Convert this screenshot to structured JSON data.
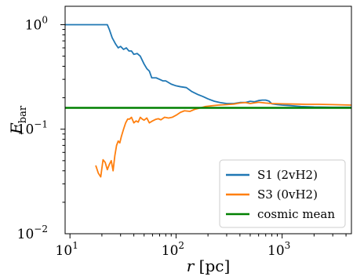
{
  "chart_data": {
    "type": "line",
    "title": "",
    "xlabel": "r [pc]",
    "ylabel": "F_bar",
    "xscale": "log",
    "yscale": "log",
    "xlim": [
      9,
      4500
    ],
    "ylim": [
      0.01,
      1.5
    ],
    "x_ticks": [
      {
        "value": 10,
        "label_base": "10",
        "label_exp": "1"
      },
      {
        "value": 100,
        "label_base": "10",
        "label_exp": "2"
      },
      {
        "value": 1000,
        "label_base": "10",
        "label_exp": "3"
      }
    ],
    "y_ticks": [
      {
        "value": 0.01,
        "label_base": "10",
        "label_exp": "−2"
      },
      {
        "value": 0.1,
        "label_base": "10",
        "label_exp": "−1"
      },
      {
        "value": 1,
        "label_base": "10",
        "label_exp": "0"
      }
    ],
    "legend_position": "lower-right",
    "series": [
      {
        "name": "S1 (2vH2)",
        "color": "#1f77b4",
        "x": [
          9,
          12,
          16,
          20,
          22.5,
          23.5,
          25,
          27,
          28.5,
          30,
          32,
          34,
          36,
          38,
          40,
          43,
          46,
          50,
          53,
          56,
          59,
          62,
          65,
          70,
          75,
          80,
          90,
          100,
          110,
          125,
          140,
          160,
          180,
          200,
          230,
          260,
          300,
          350,
          400,
          450,
          500,
          550,
          600,
          650,
          700,
          750,
          800,
          900,
          1000,
          1200,
          1500,
          2000,
          3000,
          4500
        ],
        "values": [
          1.0,
          1.0,
          1.0,
          1.0,
          1.0,
          0.9,
          0.75,
          0.65,
          0.6,
          0.62,
          0.58,
          0.6,
          0.56,
          0.56,
          0.52,
          0.53,
          0.5,
          0.42,
          0.38,
          0.36,
          0.31,
          0.31,
          0.31,
          0.3,
          0.29,
          0.29,
          0.27,
          0.26,
          0.255,
          0.25,
          0.23,
          0.215,
          0.205,
          0.195,
          0.185,
          0.18,
          0.176,
          0.176,
          0.18,
          0.18,
          0.185,
          0.183,
          0.188,
          0.19,
          0.19,
          0.186,
          0.175,
          0.172,
          0.17,
          0.168,
          0.165,
          0.163,
          0.162,
          0.162
        ]
      },
      {
        "name": "S3 (0vH2)",
        "color": "#ff7f0e",
        "x": [
          17.5,
          18.5,
          19.5,
          20.5,
          21.5,
          22.5,
          23.5,
          24.5,
          25.5,
          26.5,
          27.5,
          28.5,
          29.5,
          30.5,
          32,
          33.5,
          35,
          36.5,
          38,
          40,
          42,
          44,
          46,
          48,
          50,
          53,
          56,
          60,
          64,
          68,
          72,
          78,
          85,
          92,
          100,
          110,
          120,
          135,
          150,
          170,
          190,
          220,
          250,
          300,
          350,
          400,
          450,
          500,
          600,
          700,
          800,
          1000,
          1300,
          1700,
          2200,
          3000,
          4500
        ],
        "values": [
          0.045,
          0.038,
          0.035,
          0.051,
          0.048,
          0.041,
          0.046,
          0.05,
          0.04,
          0.056,
          0.07,
          0.077,
          0.074,
          0.085,
          0.1,
          0.115,
          0.125,
          0.125,
          0.13,
          0.115,
          0.12,
          0.117,
          0.13,
          0.125,
          0.122,
          0.128,
          0.115,
          0.12,
          0.124,
          0.126,
          0.123,
          0.13,
          0.128,
          0.13,
          0.136,
          0.145,
          0.15,
          0.148,
          0.155,
          0.16,
          0.165,
          0.168,
          0.17,
          0.172,
          0.174,
          0.178,
          0.18,
          0.176,
          0.181,
          0.178,
          0.176,
          0.175,
          0.174,
          0.173,
          0.173,
          0.172,
          0.17
        ]
      },
      {
        "name": "cosmic mean",
        "color": "#008000",
        "x": [
          9,
          4500
        ],
        "values": [
          0.16,
          0.16
        ]
      }
    ]
  }
}
